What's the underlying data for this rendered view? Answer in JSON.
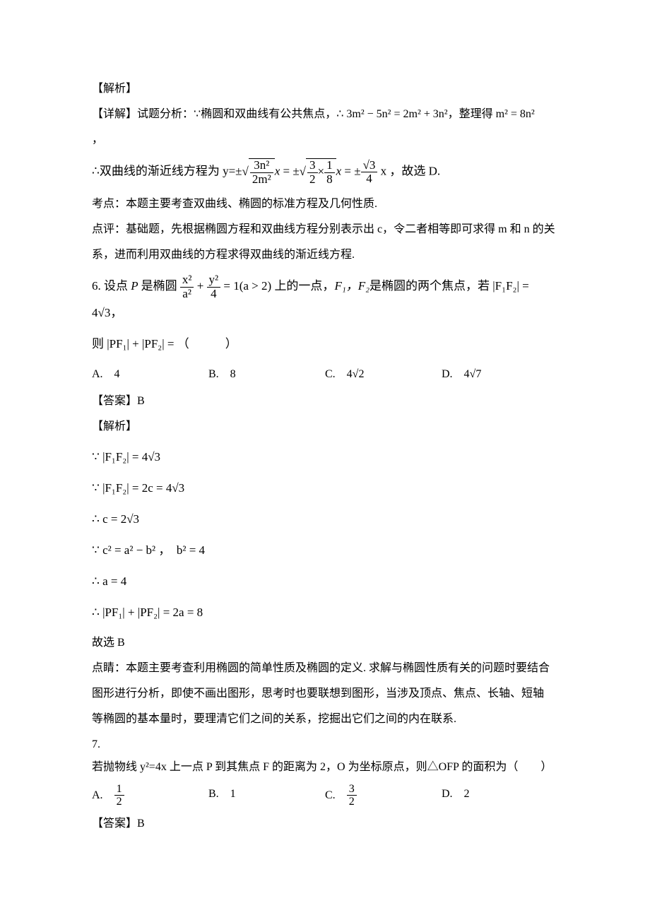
{
  "section_jiexi": "【解析】",
  "section_xiangjie_prefix": "【详解】试题分析：",
  "section_daan": "【答案】",
  "q5": {
    "analysis_part1_a": "∵",
    "analysis_part1_b": "椭圆和双曲线有公共焦点，",
    "analysis_part1_c": "∴",
    "analysis_eq1_lhs": "3m² − 5n² = 2m² + 3n²",
    "analysis_part1_d": "，整理得",
    "analysis_eq2": "m² = 8n²",
    "comma": "，",
    "analysis_part2_a": "∴",
    "analysis_part2_b": "双曲线的渐近线方程为 y=",
    "analysis_part2_c": "±",
    "asymptote_middle": " = ±",
    "asymptote_eq_final": " x ，故选 D.",
    "sqrt_frac_num": "3n²",
    "sqrt_frac_den": "2m²",
    "mid_x": "x",
    "sqrt_3_2": "3",
    "sqrt_3_2d": "2",
    "times": "×",
    "sqrt_1_8n": "1",
    "sqrt_1_8d": "8",
    "final_sqrt3": "√3",
    "final_4": "4",
    "kaodian_label": "考点：",
    "kaodian_text": "本题主要考查双曲线、椭圆的标准方程及几何性质.",
    "dianping_label": "点评：",
    "dianping_text1": "基础题，先根据椭圆方程和双曲线方程分别表示出 c，令二者相等即可求得 m 和 n 的关",
    "dianping_text2": "系，进而利用双曲线的方程求得双曲线的渐近线方程."
  },
  "q6": {
    "num": "6. ",
    "stem_a": "设点",
    "stem_P": " P ",
    "stem_b": "是椭圆",
    "ellipse_num1": "x²",
    "ellipse_den1": "a²",
    "ellipse_num2": "y²",
    "ellipse_den2": "4",
    "stem_cond": " = 1(a > 2) ",
    "stem_c": "上的一点，",
    "stem_F": "F₁，F₂",
    "stem_d": "是椭圆的两个焦点，若",
    "stem_ff": "|F₁F₂| = 4√3",
    "stem_e": "，",
    "stem2_a": "则",
    "stem2_pf": "|PF₁| + |PF₂| =",
    "stem2_b": "（　　　）",
    "optA": "A.　4",
    "optB": "B.　8",
    "optC": "C.　4√2",
    "optD": "D.　4√7",
    "answer": "B",
    "step1": "∵ |F₁F₂| = 4√3",
    "step2": "∵ |F₁F₂| = 2c = 4√3",
    "step3": "∴ c = 2√3",
    "step4": "∵ c² = a² − b² ，　b² = 4",
    "step5": "∴ a = 4",
    "step6": "∴ |PF₁| + |PF₂| = 2a = 8",
    "conclusion": "故选 B",
    "dianjing_label": "点睛：",
    "dianjing_1": "本题主要考查利用椭圆的简单性质及椭圆的定义. 求解与椭圆性质有关的问题时要结合",
    "dianjing_2": "图形进行分析，即使不画出图形，思考时也要联想到图形，当涉及顶点、焦点、长轴、短轴",
    "dianjing_3": "等椭圆的基本量时，要理清它们之间的关系，挖掘出它们之间的内在联系."
  },
  "q7": {
    "num": "7. ",
    "stem": "若抛物线 y²=4x 上一点 P 到其焦点 F 的距离为 2，O 为坐标原点，则△OFP 的面积为（　　）",
    "optA_label": "A.　",
    "optA_num": "1",
    "optA_den": "2",
    "optB": "B.　1",
    "optC_label": "C.　",
    "optC_num": "3",
    "optC_den": "2",
    "optD": "D.　2",
    "answer": "B"
  }
}
